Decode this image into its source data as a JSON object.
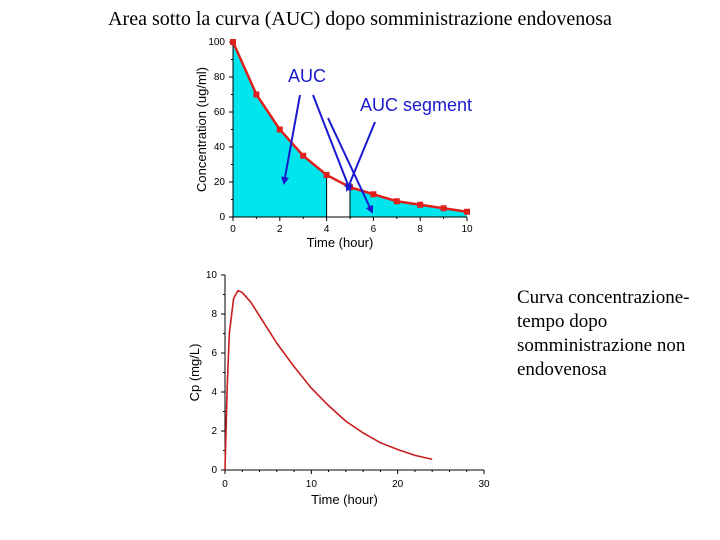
{
  "page": {
    "title": "Area sotto la curva (AUC) dopo somministrazione endovenosa",
    "caption": "Curva concentrazione-tempo dopo somministrazione non endovenosa"
  },
  "colors": {
    "area_fill": "#00e5ee",
    "curve": "#e0201c",
    "annotation": "#1a1acc",
    "pk_curve": "#c81e1e"
  },
  "chart_data": [
    {
      "type": "area",
      "xlabel": "Time (hour)",
      "ylabel": "Concentration (ug/ml)",
      "xlim": [
        0,
        10
      ],
      "ylim": [
        0,
        100
      ],
      "xticks": [
        "0",
        "2",
        "4",
        "6",
        "8",
        "10"
      ],
      "yticks": [
        "0",
        "20",
        "40",
        "60",
        "80",
        "100"
      ],
      "series": [
        {
          "x": [
            0,
            1,
            2,
            3,
            4,
            5,
            6,
            7,
            8,
            9,
            10
          ],
          "y": [
            100,
            70,
            50,
            35,
            24,
            17,
            13,
            9,
            7,
            5,
            3
          ]
        }
      ],
      "auc_segment": [
        4,
        5
      ],
      "annotations": [
        {
          "text": "AUC"
        },
        {
          "text": "AUC segment"
        }
      ]
    },
    {
      "type": "line",
      "xlabel": "Time (hour)",
      "ylabel": "Cp (mg/L)",
      "xlim": [
        0,
        30
      ],
      "ylim": [
        0,
        10
      ],
      "xticks": [
        "0",
        "10",
        "20",
        "30"
      ],
      "yticks": [
        "0",
        "2",
        "4",
        "6",
        "8",
        "10"
      ],
      "series": [
        {
          "x": [
            0,
            0.25,
            0.5,
            1,
            1.5,
            2,
            3,
            4,
            5,
            6,
            8,
            10,
            12,
            14,
            16,
            18,
            20,
            22,
            24
          ],
          "y": [
            0,
            4.2,
            7.0,
            8.8,
            9.2,
            9.1,
            8.6,
            7.9,
            7.2,
            6.5,
            5.3,
            4.2,
            3.3,
            2.5,
            1.9,
            1.4,
            1.05,
            0.75,
            0.55
          ]
        }
      ]
    }
  ]
}
